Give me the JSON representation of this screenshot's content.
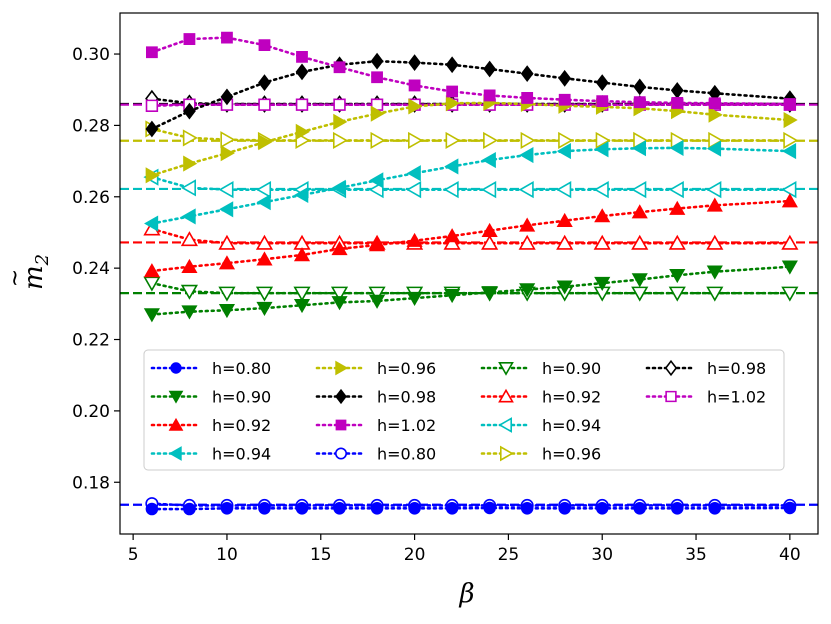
{
  "chart_data": {
    "type": "line",
    "xlabel": "β",
    "ylabel_base": "m",
    "ylabel_sub": "2",
    "xlim": [
      4.3,
      41.5
    ],
    "ylim": [
      0.1655,
      0.3115
    ],
    "xticks": [
      5,
      10,
      15,
      20,
      25,
      30,
      35,
      40
    ],
    "yticks": [
      0.18,
      0.2,
      0.22,
      0.24,
      0.26,
      0.28,
      0.3
    ],
    "ytick_labels": [
      "0.18",
      "0.20",
      "0.22",
      "0.24",
      "0.26",
      "0.28",
      "0.30"
    ],
    "legend_position": "lower-center",
    "legend_columns": 4,
    "series": [
      {
        "name": "h=0.80",
        "color": "#0000ff",
        "marker": "circle",
        "filled": true,
        "x": [
          6,
          8,
          10,
          12,
          14,
          16,
          18,
          20,
          22,
          24,
          26,
          28,
          30,
          32,
          34,
          36,
          40
        ],
        "values": [
          0.1725,
          0.1725,
          0.1727,
          0.1727,
          0.1727,
          0.1727,
          0.1727,
          0.1727,
          0.1727,
          0.1728,
          0.1727,
          0.1727,
          0.1727,
          0.1727,
          0.1727,
          0.1727,
          0.1728
        ]
      },
      {
        "name": "h=0.90",
        "color": "#008000",
        "marker": "triangle-down",
        "filled": true,
        "x": [
          6,
          8,
          10,
          12,
          14,
          16,
          18,
          20,
          22,
          24,
          26,
          28,
          30,
          32,
          34,
          36,
          40
        ],
        "values": [
          0.227,
          0.2278,
          0.2282,
          0.2288,
          0.2296,
          0.2304,
          0.2308,
          0.2316,
          0.2324,
          0.2332,
          0.234,
          0.2348,
          0.2358,
          0.2368,
          0.238,
          0.239,
          0.2404
        ]
      },
      {
        "name": "h=0.92",
        "color": "#ff0000",
        "marker": "triangle-up",
        "filled": true,
        "x": [
          6,
          8,
          10,
          12,
          14,
          16,
          18,
          20,
          22,
          24,
          26,
          28,
          30,
          32,
          34,
          36,
          40
        ],
        "values": [
          0.2392,
          0.2404,
          0.2414,
          0.2425,
          0.2437,
          0.2454,
          0.2465,
          0.2477,
          0.249,
          0.2505,
          0.252,
          0.2533,
          0.2546,
          0.2557,
          0.2567,
          0.2576,
          0.2588
        ]
      },
      {
        "name": "h=0.94",
        "color": "#00bfbf",
        "marker": "triangle-left",
        "filled": true,
        "x": [
          6,
          8,
          10,
          12,
          14,
          16,
          18,
          20,
          22,
          24,
          26,
          28,
          30,
          32,
          34,
          36,
          40
        ],
        "values": [
          0.2525,
          0.2545,
          0.2565,
          0.2585,
          0.2605,
          0.2625,
          0.2646,
          0.2666,
          0.2685,
          0.2703,
          0.2717,
          0.2728,
          0.2733,
          0.2736,
          0.2737,
          0.2735,
          0.2728
        ]
      },
      {
        "name": "h=0.96",
        "color": "#bfbf00",
        "marker": "triangle-right",
        "filled": true,
        "x": [
          6,
          8,
          10,
          12,
          14,
          16,
          18,
          20,
          22,
          24,
          26,
          28,
          30,
          32,
          34,
          36,
          40
        ],
        "values": [
          0.266,
          0.2693,
          0.2722,
          0.2753,
          0.2782,
          0.281,
          0.2833,
          0.2853,
          0.2862,
          0.2863,
          0.286,
          0.2855,
          0.2852,
          0.2848,
          0.284,
          0.283,
          0.2815
        ]
      },
      {
        "name": "h=0.98",
        "color": "#000000",
        "marker": "diamond",
        "filled": true,
        "x": [
          6,
          8,
          10,
          12,
          14,
          16,
          18,
          20,
          22,
          24,
          26,
          28,
          30,
          32,
          34,
          36,
          40
        ],
        "values": [
          0.279,
          0.284,
          0.288,
          0.292,
          0.295,
          0.297,
          0.298,
          0.2976,
          0.297,
          0.2958,
          0.2945,
          0.2932,
          0.292,
          0.2908,
          0.2898,
          0.289,
          0.2875
        ]
      },
      {
        "name": "h=1.02",
        "color": "#bf00bf",
        "marker": "square",
        "filled": true,
        "x": [
          6,
          8,
          10,
          12,
          14,
          16,
          18,
          20,
          22,
          24,
          26,
          28,
          30,
          32,
          34,
          36,
          40
        ],
        "values": [
          0.3005,
          0.3042,
          0.3046,
          0.3025,
          0.2992,
          0.2963,
          0.2935,
          0.2912,
          0.2895,
          0.2884,
          0.2877,
          0.2872,
          0.2868,
          0.2865,
          0.2863,
          0.2862,
          0.286
        ]
      },
      {
        "name": "h=0.80",
        "color": "#0000ff",
        "marker": "circle",
        "filled": false,
        "x": [
          6,
          8,
          10,
          12,
          14,
          16,
          18,
          20,
          22,
          24,
          26,
          28,
          30,
          32,
          34,
          36,
          40
        ],
        "values": [
          0.174,
          0.1735,
          0.1735,
          0.1735,
          0.1735,
          0.1735,
          0.1735,
          0.1735,
          0.1735,
          0.1735,
          0.1735,
          0.1735,
          0.1735,
          0.1735,
          0.1735,
          0.1735,
          0.1735
        ]
      },
      {
        "name": "h=0.90",
        "color": "#008000",
        "marker": "triangle-down",
        "filled": false,
        "x": [
          6,
          8,
          10,
          12,
          14,
          16,
          18,
          20,
          22,
          24,
          26,
          28,
          30,
          32,
          34,
          36,
          40
        ],
        "values": [
          0.2358,
          0.2335,
          0.233,
          0.233,
          0.233,
          0.233,
          0.233,
          0.233,
          0.233,
          0.233,
          0.233,
          0.233,
          0.233,
          0.233,
          0.233,
          0.233,
          0.233
        ]
      },
      {
        "name": "h=0.92",
        "color": "#ff0000",
        "marker": "triangle-up",
        "filled": false,
        "x": [
          6,
          8,
          10,
          12,
          14,
          16,
          18,
          20,
          22,
          24,
          26,
          28,
          30,
          32,
          34,
          36,
          40
        ],
        "values": [
          0.251,
          0.248,
          0.247,
          0.247,
          0.247,
          0.247,
          0.247,
          0.247,
          0.247,
          0.247,
          0.247,
          0.247,
          0.247,
          0.247,
          0.247,
          0.247,
          0.247
        ]
      },
      {
        "name": "h=0.94",
        "color": "#00bfbf",
        "marker": "triangle-left",
        "filled": false,
        "x": [
          6,
          8,
          10,
          12,
          14,
          16,
          18,
          20,
          22,
          24,
          26,
          28,
          30,
          32,
          34,
          36,
          40
        ],
        "values": [
          0.2655,
          0.2625,
          0.262,
          0.262,
          0.262,
          0.262,
          0.262,
          0.262,
          0.262,
          0.262,
          0.262,
          0.262,
          0.262,
          0.262,
          0.262,
          0.262,
          0.262
        ]
      },
      {
        "name": "h=0.96",
        "color": "#bfbf00",
        "marker": "triangle-right",
        "filled": false,
        "x": [
          6,
          8,
          10,
          12,
          14,
          16,
          18,
          20,
          22,
          24,
          26,
          28,
          30,
          32,
          34,
          36,
          40
        ],
        "values": [
          0.279,
          0.2765,
          0.276,
          0.2758,
          0.2758,
          0.2758,
          0.2758,
          0.2758,
          0.2758,
          0.2758,
          0.2758,
          0.2758,
          0.2758,
          0.2758,
          0.2758,
          0.2758,
          0.2758
        ]
      },
      {
        "name": "h=0.98",
        "color": "#000000",
        "marker": "diamond",
        "filled": false,
        "x": [
          6,
          8,
          10,
          12,
          14,
          16,
          18,
          20,
          22,
          24,
          26,
          28,
          30,
          32,
          34,
          36,
          40
        ],
        "values": [
          0.2875,
          0.2862,
          0.286,
          0.286,
          0.286,
          0.286,
          0.286,
          0.286,
          0.286,
          0.286,
          0.286,
          0.286,
          0.286,
          0.286,
          0.286,
          0.286,
          0.286
        ]
      },
      {
        "name": "h=1.02",
        "color": "#bf00bf",
        "marker": "square",
        "filled": false,
        "x": [
          6,
          8,
          10,
          12,
          14,
          16,
          18,
          20,
          22,
          24,
          26,
          28,
          30,
          32,
          34,
          36,
          40
        ],
        "values": [
          0.2855,
          0.2858,
          0.2858,
          0.2858,
          0.2858,
          0.2858,
          0.2858,
          0.2858,
          0.2858,
          0.2858,
          0.2858,
          0.2858,
          0.2858,
          0.2858,
          0.2858,
          0.2858,
          0.2858
        ]
      }
    ],
    "reference_lines": [
      {
        "value": 0.1737,
        "color": "#0000ff"
      },
      {
        "value": 0.233,
        "color": "#008000"
      },
      {
        "value": 0.2472,
        "color": "#ff0000"
      },
      {
        "value": 0.2622,
        "color": "#00bfbf"
      },
      {
        "value": 0.2757,
        "color": "#bfbf00"
      },
      {
        "value": 0.286,
        "color": "#000000"
      },
      {
        "value": 0.2858,
        "color": "#bf00bf"
      }
    ]
  }
}
